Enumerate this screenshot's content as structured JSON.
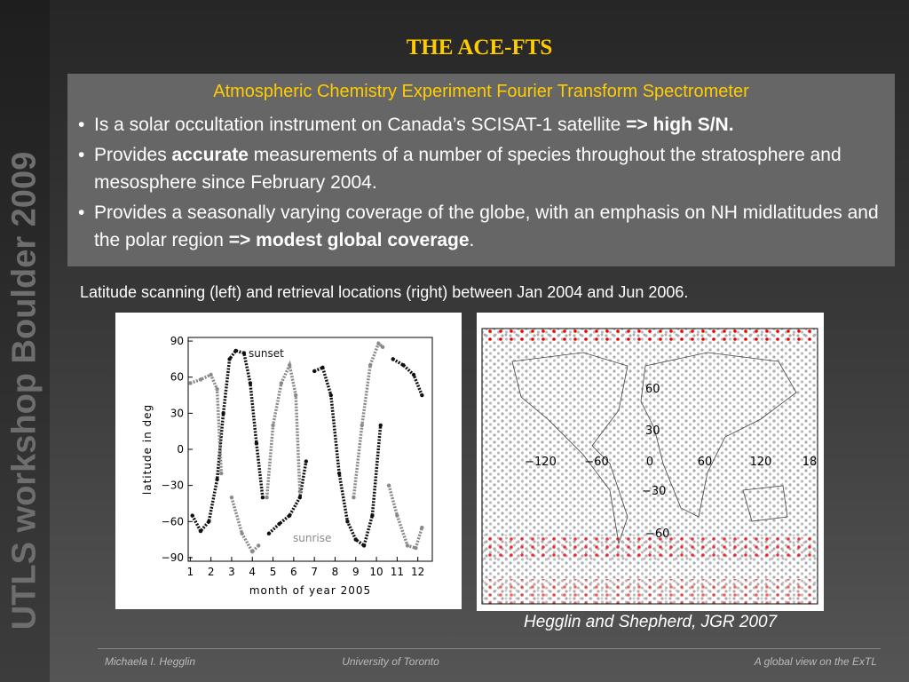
{
  "sidebar": "UTLS workshop Boulder 2009",
  "title": "THE ACE-FTS",
  "box": {
    "heading": "Atmospheric Chemistry Experiment Fourier Transform Spectrometer",
    "bullets": [
      [
        {
          "text": "Is a solar occultation instrument on Canada’s SCISAT-1 satellite ",
          "bold": false
        },
        {
          "text": "=> high S/N.",
          "bold": true
        }
      ],
      [
        {
          "text": "Provides ",
          "bold": false
        },
        {
          "text": "accurate",
          "bold": true
        },
        {
          "text": " measurements of a number of species throughout the stratosphere and mesosphere since February 2004.",
          "bold": false
        }
      ],
      [
        {
          "text": "Provides a seasonally varying coverage of the globe, with an emphasis on NH midlatitudes and the polar region ",
          "bold": false
        },
        {
          "text": "=> modest global coverage",
          "bold": true
        },
        {
          "text": ".",
          "bold": false
        }
      ]
    ]
  },
  "caption": "Latitude scanning (left) and retrieval locations (right) between Jan 2004 and Jun 2006.",
  "chart_data": {
    "type": "scatter",
    "xlabel": "month of year 2005",
    "ylabel": "latitude in deg",
    "xlim": [
      0.9,
      12.7
    ],
    "ylim": [
      -93,
      93
    ],
    "xticks": [
      1,
      2,
      3,
      4,
      5,
      6,
      7,
      8,
      9,
      10,
      11,
      12
    ],
    "yticks": [
      {
        "value": -90,
        "label": "−90"
      },
      {
        "value": -60,
        "label": "−60"
      },
      {
        "value": -30,
        "label": "−30"
      },
      0,
      30,
      60,
      90
    ],
    "annotations": [
      "sunset",
      "sunrise"
    ],
    "series": [
      {
        "name": "sunset",
        "color": "#111111",
        "x": [
          1.1,
          1.5,
          1.9,
          2.3,
          2.6,
          2.9,
          3.2,
          3.6,
          3.9,
          4.2,
          4.5,
          4.6,
          4.8,
          5.3,
          5.8,
          6.3,
          6.6,
          6.8,
          7.0,
          7.4,
          7.8,
          8.2,
          8.6,
          9.0,
          9.4,
          9.8,
          10.2,
          10.5,
          10.8,
          11.3,
          11.8,
          12.2
        ],
        "values": [
          -55,
          -68,
          -60,
          -25,
          30,
          75,
          82,
          80,
          55,
          5,
          -40,
          null,
          -70,
          -62,
          -55,
          -40,
          -10,
          null,
          65,
          68,
          45,
          -20,
          -60,
          -75,
          -80,
          -55,
          20,
          null,
          75,
          70,
          62,
          45
        ]
      },
      {
        "name": "sunrise",
        "color": "#8a8a8a",
        "x": [
          1.0,
          1.5,
          2.0,
          2.3,
          2.5,
          2.6,
          3.0,
          3.5,
          4.0,
          4.3,
          4.4,
          4.7,
          5.0,
          5.4,
          5.8,
          6.1,
          6.3,
          6.5,
          8.9,
          9.3,
          9.7,
          10.1,
          10.3,
          10.4,
          10.6,
          11.0,
          11.5,
          11.9,
          12.2
        ],
        "values": [
          55,
          58,
          62,
          50,
          -20,
          null,
          -40,
          -70,
          -85,
          -80,
          null,
          -40,
          20,
          55,
          70,
          45,
          -35,
          null,
          -40,
          20,
          70,
          88,
          85,
          null,
          -30,
          -55,
          -80,
          -82,
          -65
        ]
      }
    ]
  },
  "map": {
    "lat_labels": [
      "60",
      "30",
      "−30",
      "−60"
    ],
    "lon_labels": [
      "−120",
      "−60",
      "0",
      "60",
      "120",
      "18"
    ]
  },
  "citation": "Hegglin and Shepherd, JGR 2007",
  "footer": {
    "left": "Michaela I. Hegglin",
    "center": "University of Toronto",
    "right": "A global view on the ExTL"
  }
}
